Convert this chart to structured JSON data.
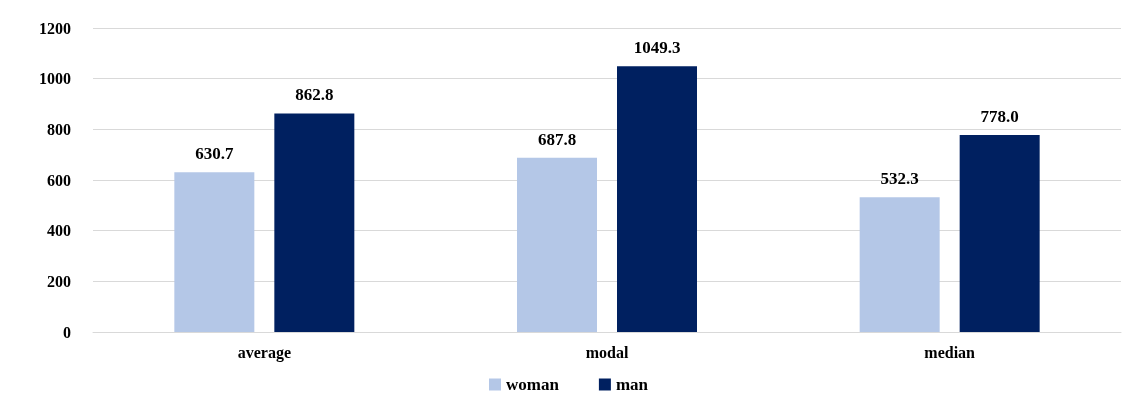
{
  "chart_data": {
    "type": "bar",
    "categories": [
      "average",
      "modal",
      "median"
    ],
    "series": [
      {
        "name": "woman",
        "color": "#b4c7e7",
        "values": [
          630.7,
          687.8,
          532.3
        ],
        "value_labels": [
          "630.7",
          "687.8",
          "532.3"
        ]
      },
      {
        "name": "man",
        "color": "#002060",
        "values": [
          862.8,
          1049.3,
          778.0
        ],
        "value_labels": [
          "862.8",
          "1049.3",
          "778.0"
        ]
      }
    ],
    "ylim": [
      0,
      1200
    ],
    "yticks": [
      0,
      200,
      400,
      600,
      800,
      1000,
      1200
    ],
    "grid": "y",
    "legend": "bottom"
  }
}
